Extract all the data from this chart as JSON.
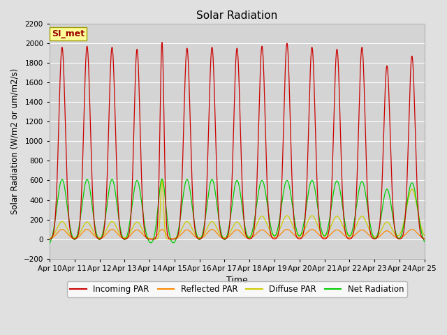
{
  "title": "Solar Radiation",
  "ylabel": "Solar Radiation (W/m2 or um/m2/s)",
  "xlabel": "Time",
  "annotation": "SI_met",
  "ylim": [
    -200,
    2200
  ],
  "yticks": [
    -200,
    0,
    200,
    400,
    600,
    800,
    1000,
    1200,
    1400,
    1600,
    1800,
    2000,
    2200
  ],
  "n_days": 15,
  "colors": {
    "incoming": "#cc0000",
    "reflected": "#ff8800",
    "diffuse": "#cccc00",
    "net": "#00cc00"
  },
  "legend_labels": [
    "Incoming PAR",
    "Reflected PAR",
    "Diffuse PAR",
    "Net Radiation"
  ],
  "bg_color": "#e0e0e0",
  "plot_bg": "#d4d4d4",
  "grid_color": "#ffffff",
  "tick_labels": [
    "Apr 10",
    "Apr 11",
    "Apr 12",
    "Apr 13",
    "Apr 14",
    "Apr 15",
    "Apr 16",
    "Apr 17",
    "Apr 18",
    "Apr 19",
    "Apr 20",
    "Apr 21",
    "Apr 22",
    "Apr 23",
    "Apr 24",
    "Apr 25"
  ],
  "incoming_peaks": [
    1960,
    1970,
    1960,
    1940,
    2010,
    1950,
    1960,
    1950,
    1970,
    2000,
    1960,
    1940,
    1960,
    1770,
    1870
  ],
  "net_peaks": [
    610,
    610,
    610,
    600,
    615,
    610,
    610,
    600,
    600,
    600,
    600,
    595,
    590,
    510,
    575
  ],
  "reflected_peaks": [
    100,
    100,
    100,
    95,
    100,
    95,
    100,
    95,
    95,
    100,
    100,
    95,
    95,
    85,
    100
  ],
  "diffuse_peaks": [
    180,
    175,
    180,
    175,
    600,
    180,
    180,
    175,
    235,
    240,
    240,
    235,
    235,
    175,
    510
  ],
  "w_incoming": [
    0.13,
    0.13,
    0.13,
    0.12,
    0.08,
    0.13,
    0.13,
    0.13,
    0.13,
    0.13,
    0.13,
    0.13,
    0.13,
    0.13,
    0.13
  ],
  "w_net": [
    0.2,
    0.2,
    0.2,
    0.2,
    0.15,
    0.2,
    0.2,
    0.2,
    0.22,
    0.22,
    0.22,
    0.22,
    0.22,
    0.2,
    0.22
  ],
  "w_reflected": [
    0.2,
    0.2,
    0.2,
    0.2,
    0.15,
    0.2,
    0.2,
    0.2,
    0.22,
    0.22,
    0.22,
    0.22,
    0.22,
    0.2,
    0.22
  ],
  "w_diffuse": [
    0.2,
    0.2,
    0.2,
    0.2,
    0.06,
    0.2,
    0.2,
    0.2,
    0.22,
    0.22,
    0.22,
    0.22,
    0.22,
    0.2,
    0.22
  ],
  "night_net": -80
}
